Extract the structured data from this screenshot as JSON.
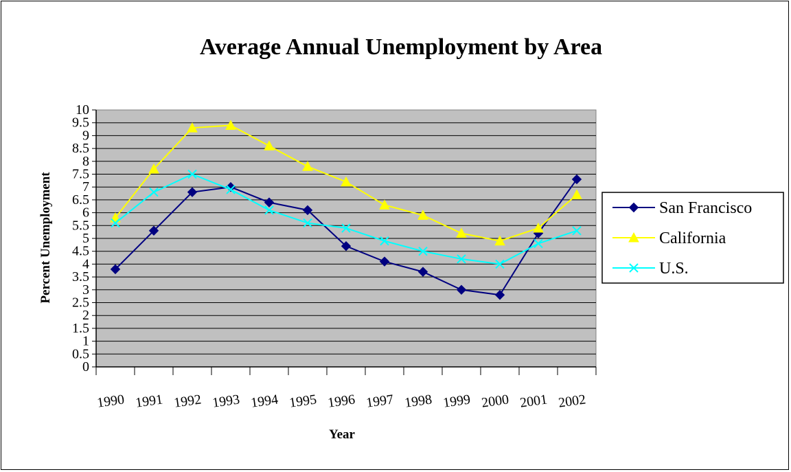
{
  "chart_data": {
    "type": "line",
    "title": "Average Annual Unemployment by Area",
    "xlabel": "Year",
    "ylabel": "Percent Unemployment",
    "categories": [
      "1990",
      "1991",
      "1992",
      "1993",
      "1994",
      "1995",
      "1996",
      "1997",
      "1998",
      "1999",
      "2000",
      "2001",
      "2002"
    ],
    "yticks": [
      "0",
      "0.5",
      "1",
      "1.5",
      "2",
      "2.5",
      "3",
      "3.5",
      "4",
      "4.5",
      "5",
      "5.5",
      "6",
      "6.5",
      "7",
      "7.5",
      "8",
      "8.5",
      "9",
      "9.5",
      "10"
    ],
    "ylim": [
      0,
      10
    ],
    "grid": true,
    "legend_position": "right",
    "plot_background": "#C0C0C0",
    "series": [
      {
        "name": "San Francisco",
        "color": "#000080",
        "marker": "diamond",
        "values": [
          3.8,
          5.3,
          6.8,
          7.0,
          6.4,
          6.1,
          4.7,
          4.1,
          3.7,
          3.0,
          2.8,
          5.2,
          7.3
        ]
      },
      {
        "name": "California",
        "color": "#FFFF00",
        "marker": "triangle",
        "values": [
          5.8,
          7.7,
          9.3,
          9.4,
          8.6,
          7.8,
          7.2,
          6.3,
          5.9,
          5.2,
          4.9,
          5.4,
          6.7
        ]
      },
      {
        "name": "U.S.",
        "color": "#00FFFF",
        "marker": "x",
        "values": [
          5.6,
          6.8,
          7.5,
          6.9,
          6.1,
          5.6,
          5.4,
          4.9,
          4.5,
          4.2,
          4.0,
          4.8,
          5.3
        ]
      }
    ]
  }
}
